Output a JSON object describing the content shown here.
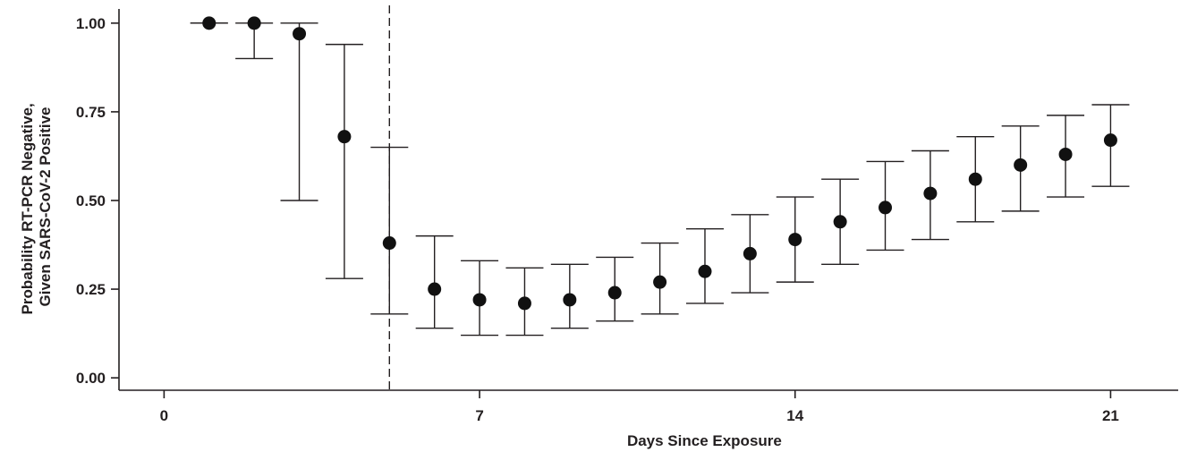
{
  "chart_data": {
    "type": "scatter",
    "title": "",
    "xlabel": "Days Since Exposure",
    "ylabel_lines": [
      "Probability RT-PCR Negative,",
      "Given SARS-CoV-2 Positive"
    ],
    "xlim": [
      -1,
      22.5
    ],
    "ylim": [
      -0.035,
      1.04
    ],
    "x_ticks": [
      0,
      7,
      14,
      21
    ],
    "x_tick_labels": [
      "0",
      "7",
      "14",
      "21"
    ],
    "y_ticks": [
      0,
      0.25,
      0.5,
      0.75,
      1.0
    ],
    "y_tick_labels": [
      "0.00",
      "0.25",
      "0.50",
      "0.75",
      "1.00"
    ],
    "grid": false,
    "reference_line": {
      "x": 5,
      "style": "dashed"
    },
    "series": [
      {
        "points": [
          {
            "x": 1,
            "y": 1.0,
            "lower": 1.0,
            "upper": 1.0
          },
          {
            "x": 2,
            "y": 1.0,
            "lower": 0.9,
            "upper": 1.0
          },
          {
            "x": 3,
            "y": 0.97,
            "lower": 0.5,
            "upper": 1.0
          },
          {
            "x": 4,
            "y": 0.68,
            "lower": 0.28,
            "upper": 0.94
          },
          {
            "x": 5,
            "y": 0.38,
            "lower": 0.18,
            "upper": 0.65
          },
          {
            "x": 6,
            "y": 0.25,
            "lower": 0.14,
            "upper": 0.4
          },
          {
            "x": 7,
            "y": 0.22,
            "lower": 0.12,
            "upper": 0.33
          },
          {
            "x": 8,
            "y": 0.21,
            "lower": 0.12,
            "upper": 0.31
          },
          {
            "x": 9,
            "y": 0.22,
            "lower": 0.14,
            "upper": 0.32
          },
          {
            "x": 10,
            "y": 0.24,
            "lower": 0.16,
            "upper": 0.34
          },
          {
            "x": 11,
            "y": 0.27,
            "lower": 0.18,
            "upper": 0.38
          },
          {
            "x": 12,
            "y": 0.3,
            "lower": 0.21,
            "upper": 0.42
          },
          {
            "x": 13,
            "y": 0.35,
            "lower": 0.24,
            "upper": 0.46
          },
          {
            "x": 14,
            "y": 0.39,
            "lower": 0.27,
            "upper": 0.51
          },
          {
            "x": 15,
            "y": 0.44,
            "lower": 0.32,
            "upper": 0.56
          },
          {
            "x": 16,
            "y": 0.48,
            "lower": 0.36,
            "upper": 0.61
          },
          {
            "x": 17,
            "y": 0.52,
            "lower": 0.39,
            "upper": 0.64
          },
          {
            "x": 18,
            "y": 0.56,
            "lower": 0.44,
            "upper": 0.68
          },
          {
            "x": 19,
            "y": 0.6,
            "lower": 0.47,
            "upper": 0.71
          },
          {
            "x": 20,
            "y": 0.63,
            "lower": 0.51,
            "upper": 0.74
          },
          {
            "x": 21,
            "y": 0.67,
            "lower": 0.54,
            "upper": 0.77
          }
        ]
      }
    ],
    "colors": {
      "marker": "#111111",
      "line": "#231f20"
    }
  }
}
